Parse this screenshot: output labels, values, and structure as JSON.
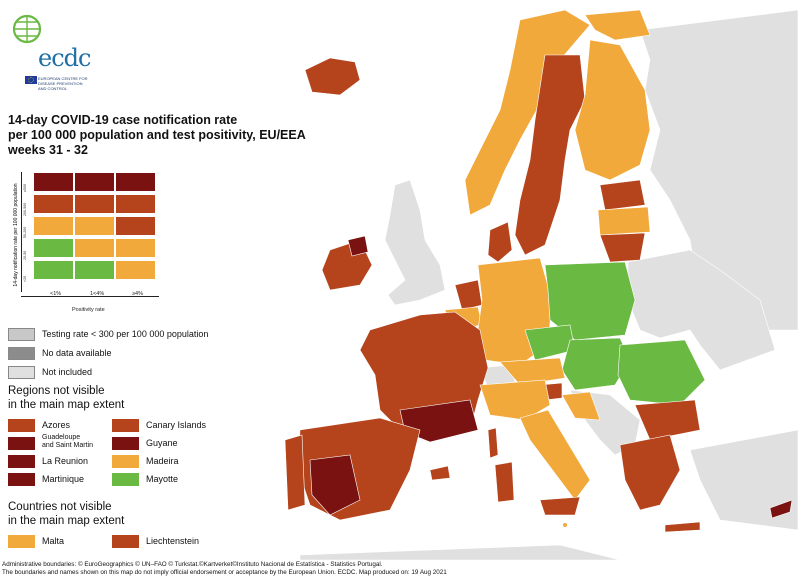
{
  "logo": {
    "name": "ecdc",
    "subtitle": "EUROPEAN CENTRE FOR DISEASE PREVENTION AND CONTROL"
  },
  "title": {
    "line1": "14-day COVID-19 case notification rate",
    "line2": "per 100 000 population and test positivity, EU/EEA",
    "line3": "weeks 31 - 32"
  },
  "colors": {
    "dark_red": "#7a1212",
    "red_brown": "#b5441d",
    "orange": "#f2a93b",
    "green": "#6ab942",
    "grey_testing": "#c8c8c8",
    "grey_nodata": "#8c8c8c",
    "grey_notincluded": "#e0e0e0",
    "sea": "#ffffff"
  },
  "matrix": {
    "y_axis_label": "14-day notification rate per 100 000 population",
    "x_axis_label": "Positivity rate",
    "x_ticks": [
      "<1%",
      "1<4%",
      "≥4%"
    ],
    "y_ticks": [
      "<20",
      "20-50",
      "50-200",
      "200-500",
      "≥500"
    ]
  },
  "legend": {
    "testing": "Testing rate < 300 per 100 000 population",
    "nodata": "No data available",
    "notincluded": "Not included",
    "regions_heading_1": "Regions not visible",
    "regions_heading_2": "in the main map extent",
    "regions": [
      {
        "label": "Azores",
        "color": "#b5441d"
      },
      {
        "label": "Canary Islands",
        "color": "#b5441d"
      },
      {
        "label": "Guadeloupe\nand Saint Martin",
        "color": "#7a1212"
      },
      {
        "label": "Guyane",
        "color": "#7a1212"
      },
      {
        "label": "La Reunion",
        "color": "#7a1212"
      },
      {
        "label": "Madeira",
        "color": "#f2a93b"
      },
      {
        "label": "Martinique",
        "color": "#7a1212"
      },
      {
        "label": "Mayotte",
        "color": "#6ab942"
      }
    ],
    "countries_heading_1": "Countries not visible",
    "countries_heading_2": "in the main map extent",
    "countries": [
      {
        "label": "Malta",
        "color": "#f2a93b"
      },
      {
        "label": "Liechtenstein",
        "color": "#b5441d"
      }
    ]
  },
  "footer": {
    "line1": "Administrative boundaries: © EuroGeographics © UN–FAO © Turkstat.©Kartverket©Instituto Nacional de Estatística - Statistics Portugal.",
    "line2": "The boundaries and names shown on this map do not imply official endorsement or acceptance by the European Union. ECDC. Map produced on: 19 Aug 2021"
  }
}
